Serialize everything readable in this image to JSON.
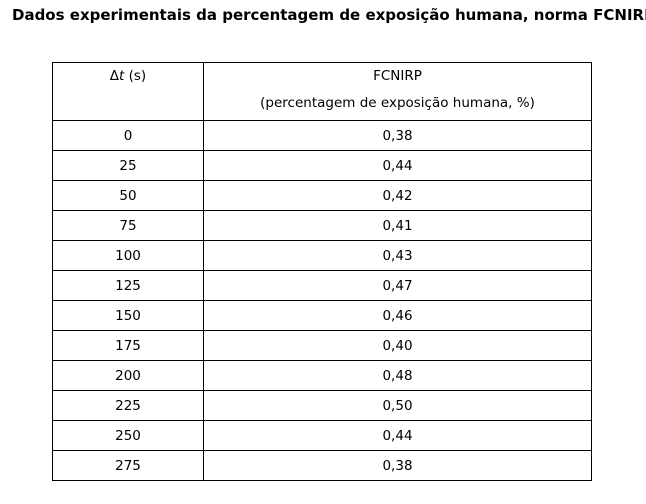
{
  "document": {
    "title": "Dados experimentais da percentagem de exposição humana, norma FCNIRP:"
  },
  "table": {
    "header": {
      "col1_symbol": "Δ",
      "col1_var": "t",
      "col1_unit": " (s)",
      "col2_line1": "FCNIRP",
      "col2_line2": "(percentagem de exposição humana, %)"
    },
    "rows": [
      {
        "dt": "0",
        "value": "0,38"
      },
      {
        "dt": "25",
        "value": "0,44"
      },
      {
        "dt": "50",
        "value": "0,42"
      },
      {
        "dt": "75",
        "value": "0,41"
      },
      {
        "dt": "100",
        "value": "0,43"
      },
      {
        "dt": "125",
        "value": "0,47"
      },
      {
        "dt": "150",
        "value": "0,46"
      },
      {
        "dt": "175",
        "value": "0,40"
      },
      {
        "dt": "200",
        "value": "0,48"
      },
      {
        "dt": "225",
        "value": "0,50"
      },
      {
        "dt": "250",
        "value": "0,44"
      },
      {
        "dt": "275",
        "value": "0,38"
      }
    ]
  }
}
